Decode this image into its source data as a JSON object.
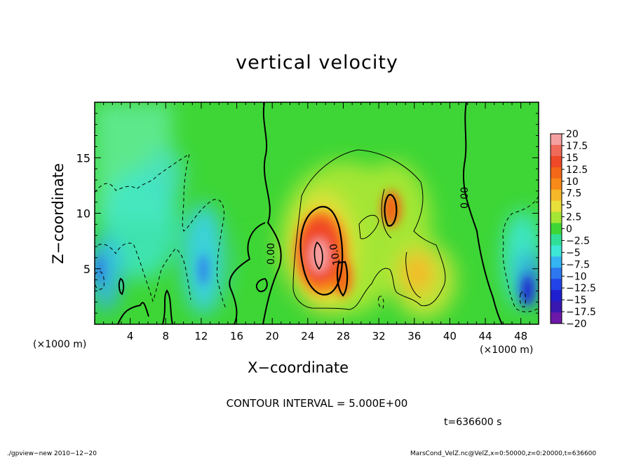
{
  "header": {
    "title": "vertical velocity"
  },
  "axes": {
    "xlabel": "X−coordinate",
    "ylabel": "Z−coordinate",
    "x_unit_left": "(×1000 m)",
    "x_unit_right": "(×1000 m)"
  },
  "annotations": {
    "contour_interval": "CONTOUR INTERVAL = 5.000E+00",
    "time": "t=636600 s",
    "footer_left": "./gpview−new   2010−12−20",
    "footer_right": "MarsCond_VelZ.nc@VelZ,x=0:50000,z=0:20000,t=636600"
  },
  "chart_data": {
    "type": "heatmap",
    "title": "vertical velocity",
    "xlabel": "X−coordinate",
    "ylabel": "Z−coordinate",
    "xlim": [
      0,
      50
    ],
    "ylim": [
      0,
      20
    ],
    "x_ticks": [
      "4",
      "8",
      "12",
      "16",
      "20",
      "24",
      "28",
      "32",
      "36",
      "40",
      "44",
      "48"
    ],
    "y_ticks": [
      "5",
      "10",
      "15"
    ],
    "x_tick_values": [
      4,
      8,
      12,
      16,
      20,
      24,
      28,
      32,
      36,
      40,
      44,
      48
    ],
    "y_tick_values": [
      5,
      10,
      15
    ],
    "colorbar_labels": [
      "20",
      "17.5",
      "15",
      "12.5",
      "10",
      "7.5",
      "5",
      "2.5",
      "0",
      "−2.5",
      "−5",
      "−7.5",
      "−10",
      "−12.5",
      "−15",
      "−17.5",
      "−20"
    ],
    "colorbar_levels": [
      20,
      17.5,
      15,
      12.5,
      10,
      7.5,
      5,
      2.5,
      0,
      -2.5,
      -5,
      -7.5,
      -10,
      -12.5,
      -15,
      -17.5,
      -20
    ],
    "colorbar_colors": [
      "#f5a0a0",
      "#f06a5a",
      "#f04828",
      "#f26818",
      "#f78a18",
      "#f6b828",
      "#e7df3a",
      "#a4e634",
      "#3ed636",
      "#30e098",
      "#3ee8d6",
      "#34b4f2",
      "#2d78ee",
      "#2244e6",
      "#1f1fd0",
      "#3818b0",
      "#6c18a8"
    ],
    "contour_labels": [
      "0.00",
      "10.0",
      "0.00"
    ],
    "contour_interval": 5.0,
    "features": [
      {
        "kind": "updraft-max",
        "x": 25.5,
        "z": 6.5,
        "value": 17
      },
      {
        "kind": "updraft",
        "x": 33.5,
        "z": 10.5,
        "value": 11
      },
      {
        "kind": "updraft",
        "x": 27.5,
        "z": 4.0,
        "value": 11
      },
      {
        "kind": "updraft",
        "x": 37,
        "z": 4.2,
        "value": 6
      },
      {
        "kind": "downdraft",
        "x": 49,
        "z": 3.5,
        "value": -11
      },
      {
        "kind": "downdraft",
        "x": 12.5,
        "z": 5.5,
        "value": -7
      },
      {
        "kind": "downdraft",
        "x": 6.5,
        "z": 8,
        "value": -5
      },
      {
        "kind": "downdraft",
        "x": 0.5,
        "z": 5,
        "value": -8
      }
    ]
  }
}
